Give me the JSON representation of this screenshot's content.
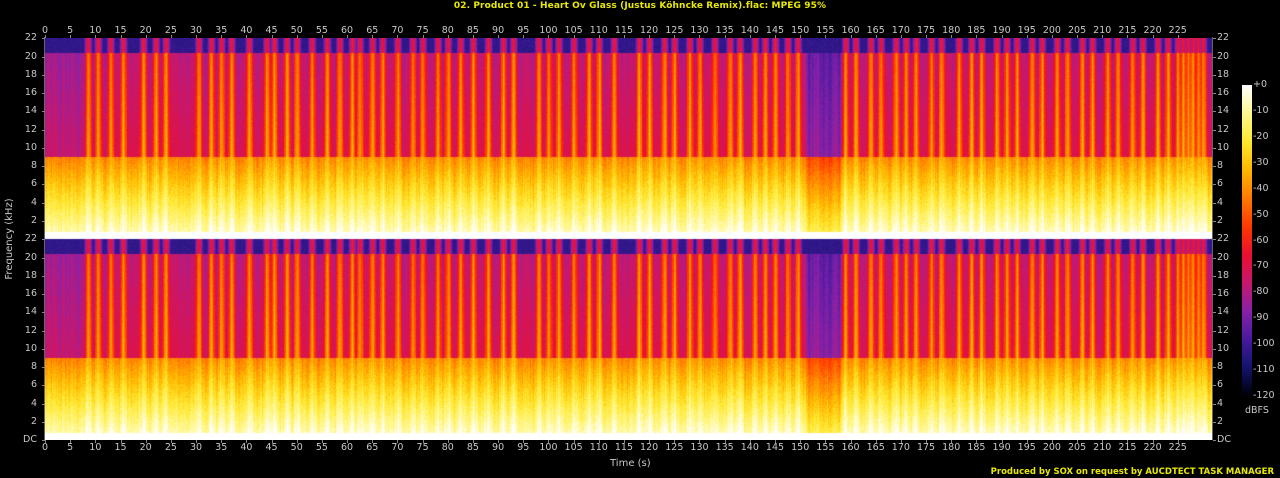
{
  "header": {
    "title": "02. Product 01 - Heart Ov Glass (Justus Köhncke Remix).flac: MPEG 95%"
  },
  "footer": {
    "credit": "Produced by SOX on request by AUCDTECT TASK MANAGER"
  },
  "colors": {
    "background": "#000000",
    "title": "#e8e800",
    "axis_text": "#c8c8c8"
  },
  "chart_data": {
    "type": "heatmap",
    "subtype": "spectrogram",
    "title": "02. Product 01 - Heart Ov Glass (Justus Köhncke Remix).flac: MPEG 95%",
    "xlabel": "Time (s)",
    "ylabel": "Frequency (kHz)",
    "xlim": [
      0,
      232
    ],
    "ylim": [
      0,
      22.05
    ],
    "x_ticks": [
      0,
      5,
      10,
      15,
      20,
      25,
      30,
      35,
      40,
      45,
      50,
      55,
      60,
      65,
      70,
      75,
      80,
      85,
      90,
      95,
      100,
      105,
      110,
      115,
      120,
      125,
      130,
      135,
      140,
      145,
      150,
      155,
      160,
      165,
      170,
      175,
      180,
      185,
      190,
      195,
      200,
      205,
      210,
      215,
      220,
      225
    ],
    "y_ticks": [
      "DC",
      "2",
      "4",
      "6",
      "8",
      "10",
      "12",
      "14",
      "16",
      "18",
      "20",
      "22"
    ],
    "y_tick_values": [
      0,
      2,
      4,
      6,
      8,
      10,
      12,
      14,
      16,
      18,
      20,
      22
    ],
    "channels": 2,
    "colorbar": {
      "label": "dBFS",
      "ticks": [
        "+0",
        "-10",
        "-20",
        "-30",
        "-40",
        "-50",
        "-60",
        "-70",
        "-80",
        "-90",
        "-100",
        "-110",
        "-120"
      ],
      "range": [
        -120,
        0
      ],
      "stops": [
        "#000008",
        "#14146e",
        "#4a1aa0",
        "#8a22a8",
        "#c8186e",
        "#ea1030",
        "#ff3a00",
        "#ff7a00",
        "#ffb800",
        "#ffe830",
        "#fff890",
        "#ffffff"
      ]
    },
    "features": {
      "lowpass_cutoff_khz": 20.5,
      "shelf_khz": 9.0,
      "intro_quiet_until_s": 8.5,
      "breakdown_s": [
        151,
        158
      ],
      "beat_bursts_s": [
        8.5,
        10.5,
        13,
        15.5,
        19.5,
        22,
        24,
        30.5,
        33,
        35,
        37,
        40.5,
        44,
        45.5,
        48,
        50,
        53,
        56,
        58.5,
        61,
        62.5,
        65,
        67,
        70,
        73,
        75,
        78,
        80,
        82.5,
        85,
        88,
        91,
        93,
        98,
        100,
        102,
        105,
        108,
        110,
        113,
        118,
        120,
        123,
        125,
        128,
        130,
        133,
        136,
        138,
        141,
        143,
        145,
        147.5,
        149.5,
        159,
        161,
        164,
        166,
        169,
        171,
        173,
        176,
        178,
        181.5,
        184,
        186,
        189,
        191,
        193,
        196,
        198,
        201,
        203,
        206,
        208,
        211,
        213,
        216,
        218,
        221,
        223,
        225,
        226,
        227,
        228,
        229,
        230
      ]
    }
  }
}
